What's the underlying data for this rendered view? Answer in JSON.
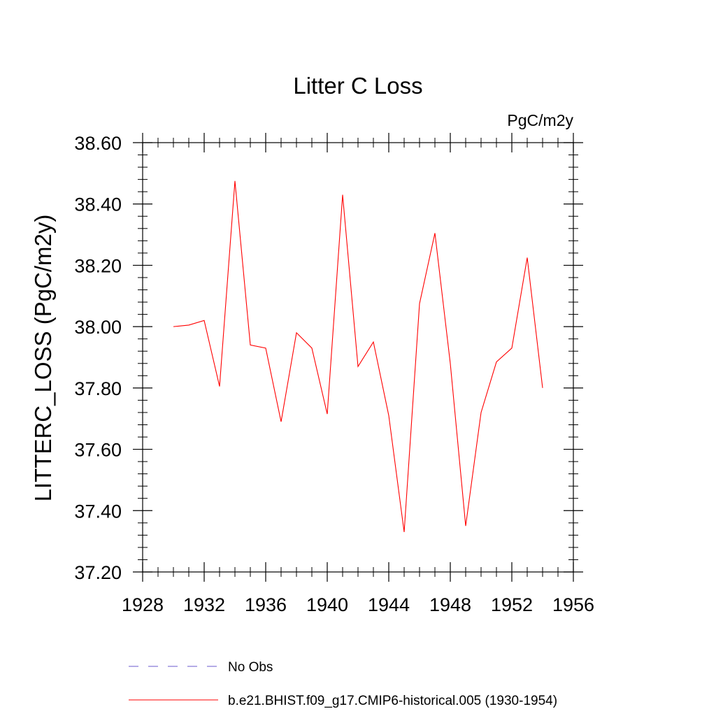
{
  "chart_data": {
    "type": "line",
    "title": "Litter C Loss",
    "units_label": "PgC/m2y",
    "ylabel": "LITTERC_LOSS  (PgC/m2y)",
    "xlabel": "",
    "xlim": [
      1928,
      1956
    ],
    "ylim": [
      37.2,
      38.6
    ],
    "x_ticks": [
      1928,
      1932,
      1936,
      1940,
      1944,
      1948,
      1952,
      1956
    ],
    "x_tick_labels": [
      "1928",
      "1932",
      "1936",
      "1940",
      "1944",
      "1948",
      "1952",
      "1956"
    ],
    "y_ticks": [
      37.2,
      37.4,
      37.6,
      37.8,
      38.0,
      38.2,
      38.4,
      38.6
    ],
    "y_tick_labels": [
      "37.20",
      "37.40",
      "37.60",
      "37.80",
      "38.00",
      "38.20",
      "38.40",
      "38.60"
    ],
    "x_minor_step": 1,
    "y_minor_step": 0.04,
    "grid": false,
    "legend_position": "bottom",
    "series": [
      {
        "name": "b.e21.BHIST.f09_g17.CMIP6-historical.005 (1930-1954)",
        "color": "#ff0000",
        "style": "solid",
        "x": [
          1930,
          1931,
          1932,
          1933,
          1934,
          1935,
          1936,
          1937,
          1938,
          1939,
          1940,
          1941,
          1942,
          1943,
          1944,
          1945,
          1946,
          1947,
          1948,
          1949,
          1950,
          1951,
          1952,
          1953,
          1954
        ],
        "values": [
          38.0,
          38.005,
          38.02,
          37.805,
          38.475,
          37.94,
          37.93,
          37.69,
          37.98,
          37.93,
          37.715,
          38.43,
          37.87,
          37.95,
          37.71,
          37.33,
          38.075,
          38.305,
          37.88,
          37.35,
          37.72,
          37.885,
          37.93,
          38.225,
          37.8
        ]
      },
      {
        "name": "No Obs",
        "color": "#6a5acd",
        "style": "dashed",
        "x": [],
        "values": []
      }
    ]
  }
}
